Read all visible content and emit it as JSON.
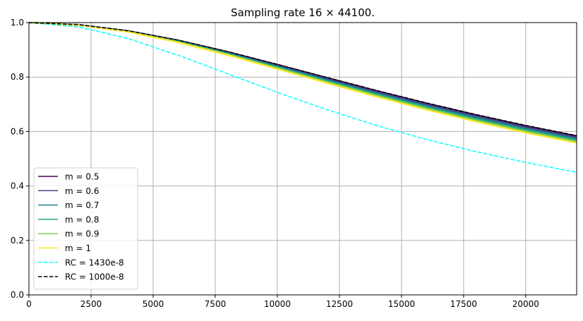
{
  "chart_data": {
    "type": "line",
    "title": "Sampling rate 16 × 44100.",
    "xlabel": "",
    "ylabel": "",
    "xlim": [
      0,
      22050
    ],
    "ylim": [
      0,
      1
    ],
    "grid": true,
    "legend_position": "lower-left",
    "x_ticks": [
      0,
      2500,
      5000,
      7500,
      10000,
      12500,
      15000,
      17500,
      20000
    ],
    "x_tick_labels": [
      "0",
      "2500",
      "5000",
      "7500",
      "10000",
      "12500",
      "15000",
      "17500",
      "20000"
    ],
    "y_ticks": [
      0,
      0.2,
      0.4,
      0.6,
      0.8,
      1.0
    ],
    "y_tick_labels": [
      "0.0",
      "0.2",
      "0.4",
      "0.6",
      "0.8",
      "1.0"
    ],
    "x": [
      0,
      2000,
      4000,
      6000,
      8000,
      10000,
      12000,
      14000,
      16000,
      18000,
      20000,
      22000,
      22050
    ],
    "series": [
      {
        "name": "m = 0.5",
        "color": "#440154",
        "dash": false,
        "values": [
          1,
          0.9921,
          0.9695,
          0.9351,
          0.8927,
          0.8455,
          0.7971,
          0.7492,
          0.7035,
          0.6605,
          0.6207,
          0.5842,
          0.5833
        ]
      },
      {
        "name": "m = 0.6",
        "color": "#414487",
        "dash": false,
        "values": [
          1,
          0.9919,
          0.9688,
          0.9337,
          0.8905,
          0.8426,
          0.7936,
          0.7452,
          0.6993,
          0.6561,
          0.6161,
          0.5796,
          0.5787
        ]
      },
      {
        "name": "m = 0.7",
        "color": "#2a788e",
        "dash": false,
        "values": [
          1,
          0.9917,
          0.968,
          0.9322,
          0.8881,
          0.8394,
          0.7897,
          0.7408,
          0.6945,
          0.6511,
          0.611,
          0.5744,
          0.5735
        ]
      },
      {
        "name": "m = 0.8",
        "color": "#22a884",
        "dash": false,
        "values": [
          1,
          0.9915,
          0.9673,
          0.9307,
          0.8859,
          0.8364,
          0.7861,
          0.7367,
          0.6901,
          0.6464,
          0.6062,
          0.5696,
          0.5687
        ]
      },
      {
        "name": "m = 0.9",
        "color": "#7ad151",
        "dash": false,
        "values": [
          1,
          0.9913,
          0.9665,
          0.9291,
          0.8834,
          0.8332,
          0.7821,
          0.7323,
          0.6853,
          0.6414,
          0.6011,
          0.5644,
          0.5634
        ]
      },
      {
        "name": "m = 1",
        "color": "#fde725",
        "dash": false,
        "values": [
          1,
          0.9911,
          0.9657,
          0.9275,
          0.8809,
          0.8298,
          0.7781,
          0.7277,
          0.6803,
          0.6362,
          0.5957,
          0.559,
          0.5581
        ]
      },
      {
        "name": "RC = 1430e-8",
        "color": "#00ffff",
        "dash": true,
        "values": [
          1,
          0.9842,
          0.9411,
          0.8802,
          0.812,
          0.7438,
          0.68,
          0.6223,
          0.571,
          0.5259,
          0.4863,
          0.4514,
          0.4506
        ]
      },
      {
        "name": "RC = 1000e-8",
        "color": "#000000",
        "dash": true,
        "values": [
          1,
          0.9922,
          0.9698,
          0.9357,
          0.8936,
          0.8467,
          0.7985,
          0.7508,
          0.7053,
          0.6624,
          0.6226,
          0.5861,
          0.5852
        ]
      }
    ]
  }
}
